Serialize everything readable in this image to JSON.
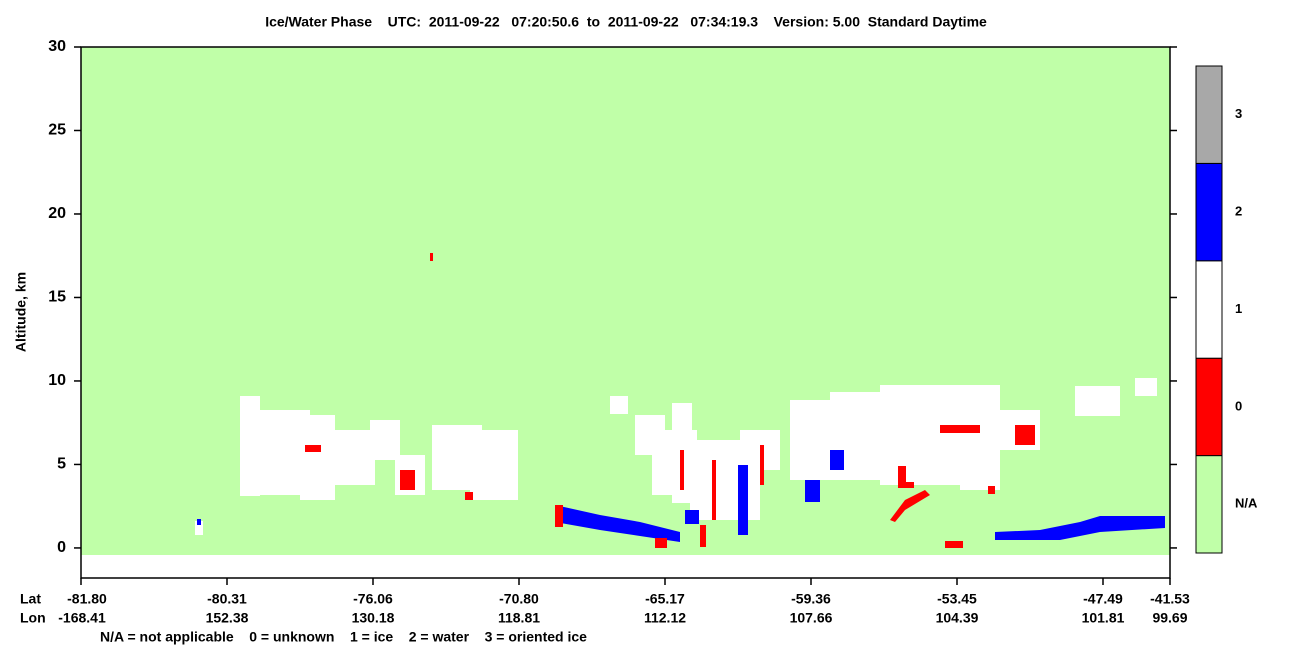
{
  "chart_data": {
    "type": "phase-curtain",
    "title": "Ice/Water Phase    UTC:  2011-09-22   07:20:50.6  to  2011-09-22   07:34:19.3    Version: 5.00  Standard Daytime",
    "y_label": "Altitude, km",
    "ylim": [
      -1.8,
      30
    ],
    "yticks": [
      0,
      5,
      10,
      15,
      20,
      25,
      30
    ],
    "x_row_labels": [
      "Lat",
      "Lon"
    ],
    "lat_labels": [
      "-81.80",
      "-80.31",
      "-76.06",
      "-70.80",
      "-65.17",
      "-59.36",
      "-53.45",
      "-47.49",
      "-41.53"
    ],
    "lon_labels": [
      "-168.41",
      "152.38",
      "130.18",
      "118.81",
      "112.12",
      "107.66",
      "104.39",
      "101.81",
      "99.69"
    ],
    "footnote": "N/A = not applicable    0 = unknown    1 = ice    2 = water    3 = oriented ice",
    "colorbar": [
      {
        "label": "N/A",
        "color": "#c0ffa8"
      },
      {
        "label": "0",
        "color": "#ff0000"
      },
      {
        "label": "1",
        "color": "#ffffff"
      },
      {
        "label": "2",
        "color": "#0000ff"
      },
      {
        "label": "3",
        "color": "#a8a8a8"
      }
    ]
  }
}
